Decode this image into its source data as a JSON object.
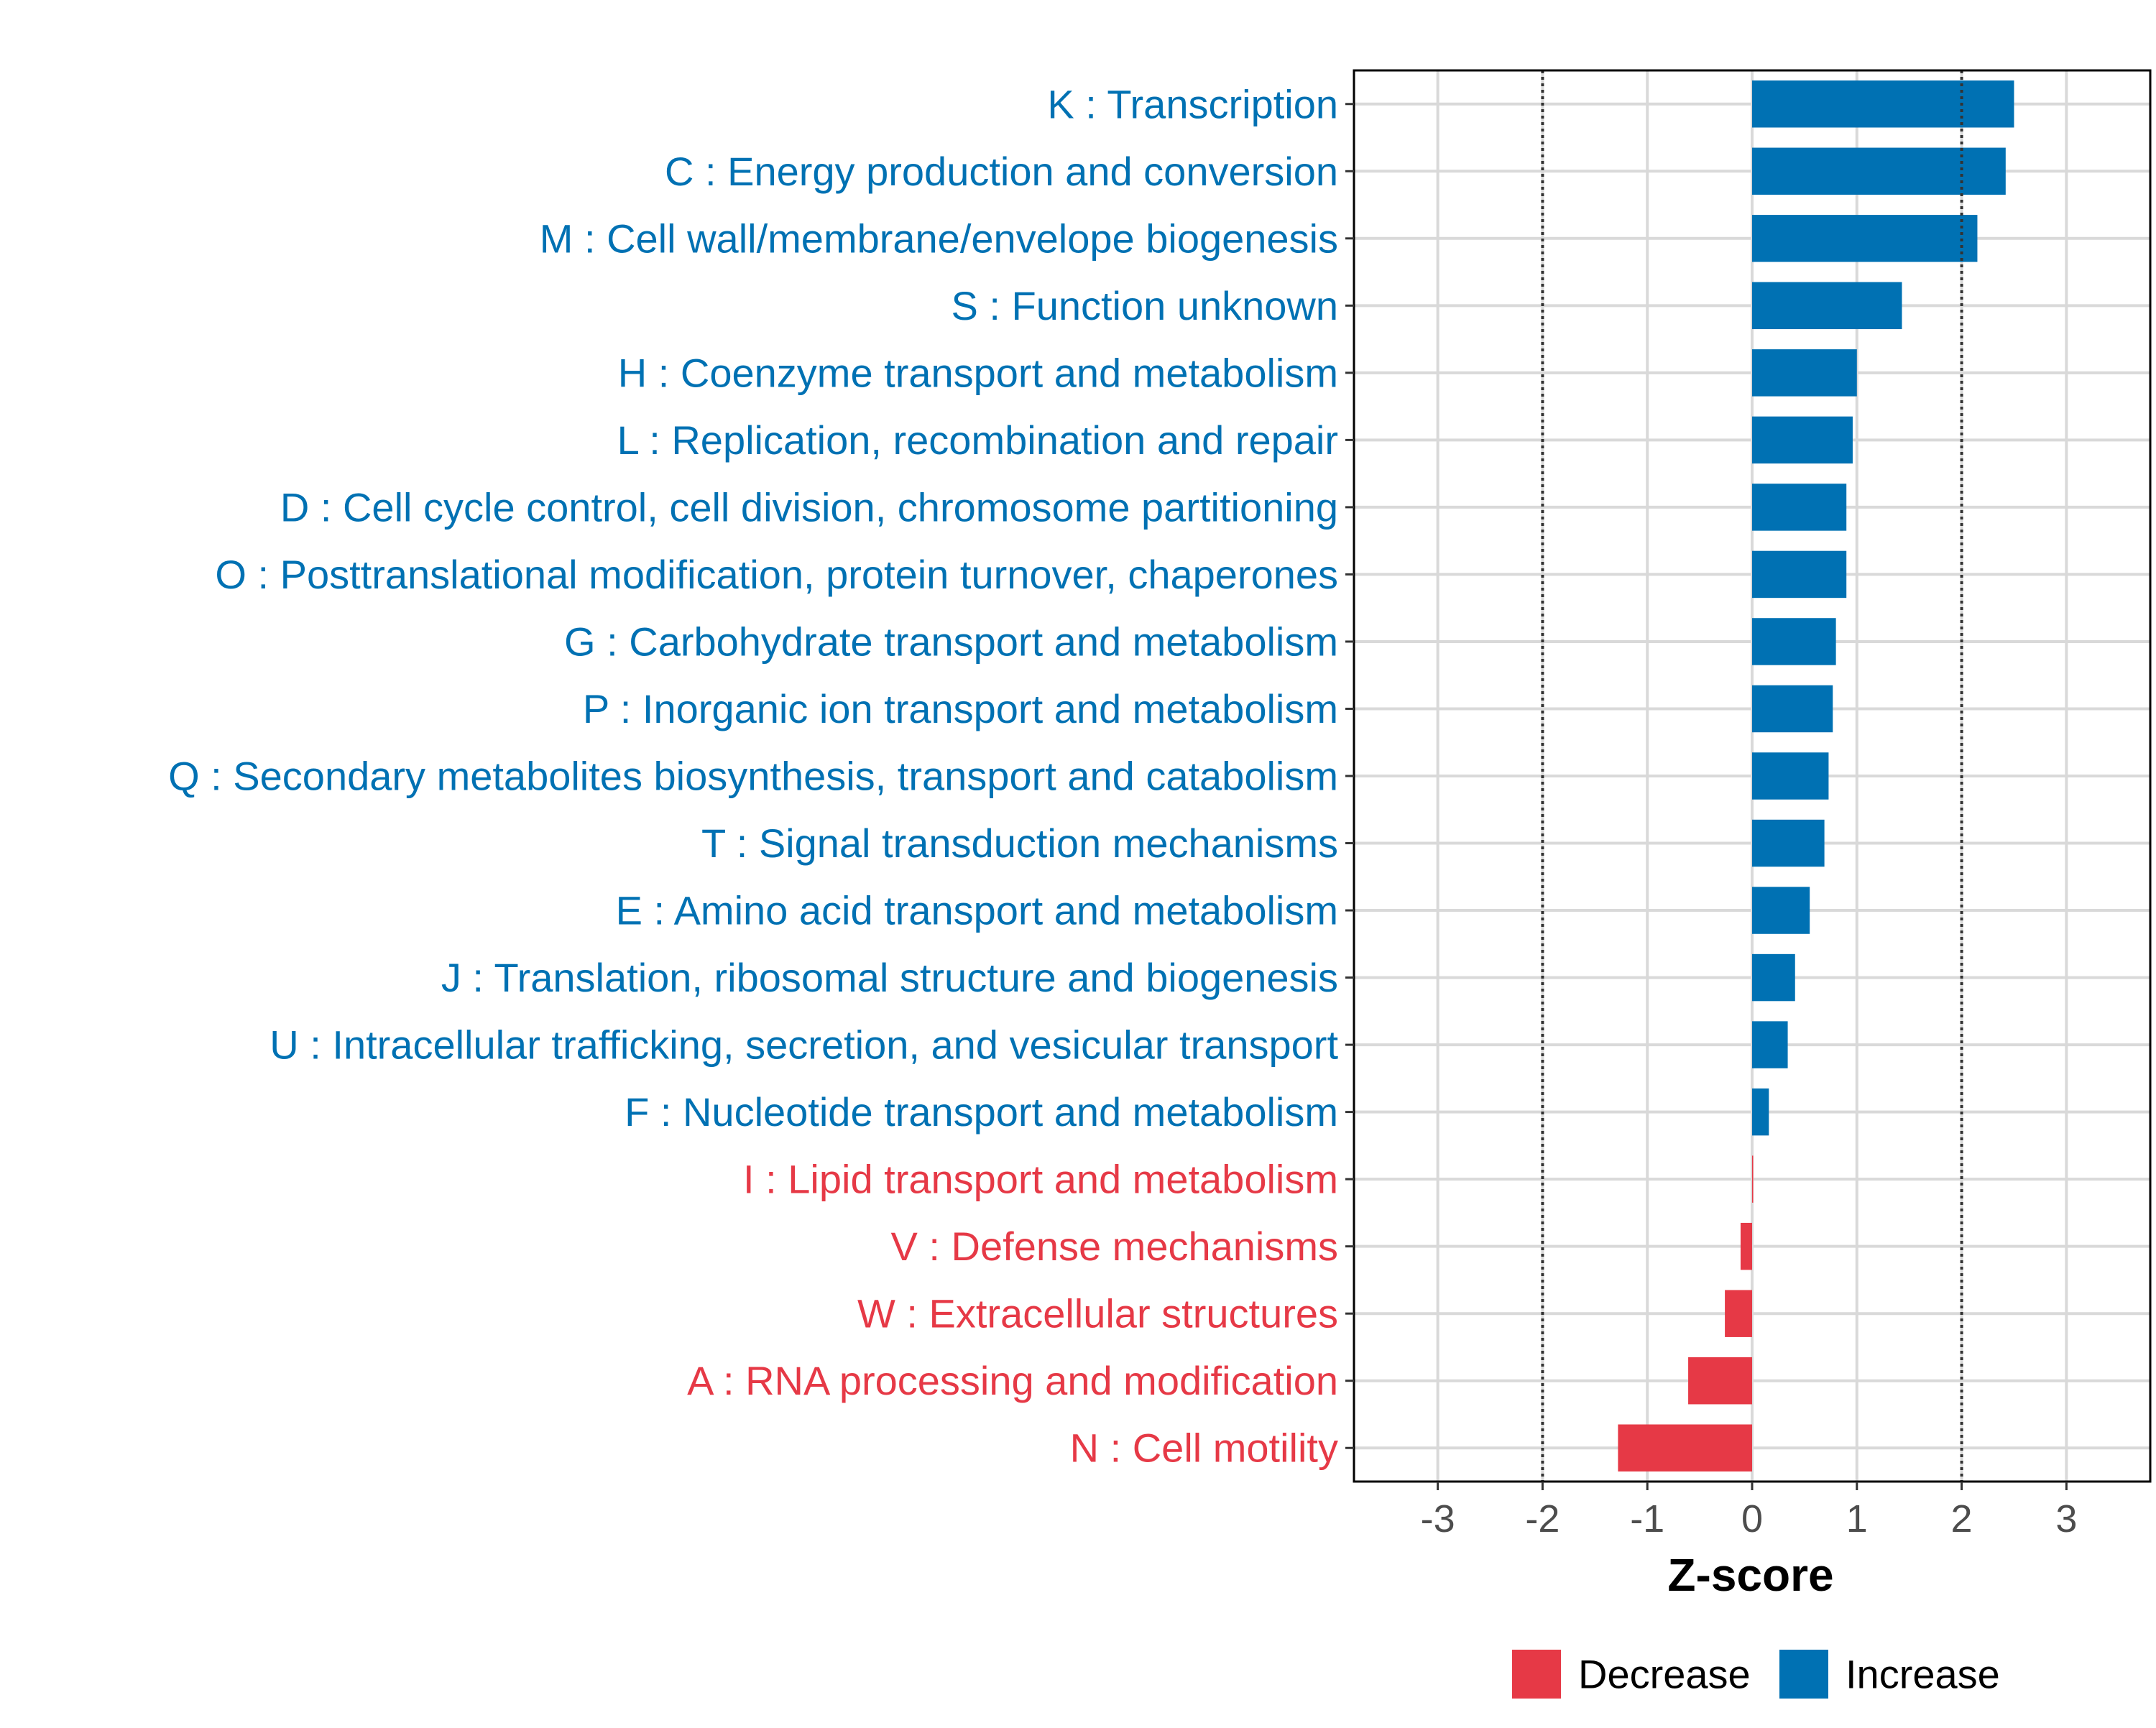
{
  "chart_data": {
    "type": "bar",
    "orientation": "horizontal",
    "xlabel": "Z-score",
    "ylabel": "",
    "xlim": [
      -3.8,
      3.8
    ],
    "xticks": [
      -3,
      -2,
      -1,
      0,
      1,
      2,
      3
    ],
    "xtick_labels": [
      "-3",
      "-2",
      "-1",
      "0",
      "1",
      "2",
      "3"
    ],
    "threshold_lines": [
      -2,
      2
    ],
    "grid": true,
    "colors": {
      "Increase": "#0071b3",
      "Decrease": "#e63946",
      "axis": "#000000",
      "grid": "#d9d9d9",
      "tick_text": "#4d4d4d"
    },
    "legend": {
      "position": "bottom",
      "entries": [
        "Decrease",
        "Increase"
      ]
    },
    "categories": [
      "K : Transcription",
      "C : Energy production and conversion",
      "M : Cell wall/membrane/envelope biogenesis",
      "S : Function unknown",
      "H : Coenzyme transport and metabolism",
      "L : Replication, recombination and repair",
      "D : Cell cycle control, cell division, chromosome partitioning",
      "O : Posttranslational modification, protein turnover, chaperones",
      "G : Carbohydrate transport and metabolism",
      "P : Inorganic ion transport and metabolism",
      "Q : Secondary metabolites biosynthesis, transport and catabolism",
      "T : Signal transduction mechanisms",
      "E : Amino acid transport and metabolism",
      "J : Translation, ribosomal structure and biogenesis",
      "U : Intracellular trafficking, secretion, and vesicular transport",
      "F : Nucleotide transport and metabolism",
      "I : Lipid transport and metabolism",
      "V : Defense mechanisms",
      "W : Extracellular structures",
      "A : RNA processing and modification",
      "N : Cell motility"
    ],
    "values": [
      2.5,
      2.42,
      2.15,
      1.43,
      1.0,
      0.96,
      0.9,
      0.9,
      0.8,
      0.77,
      0.73,
      0.69,
      0.55,
      0.41,
      0.34,
      0.16,
      0.01,
      -0.11,
      -0.26,
      -0.61,
      -1.28
    ],
    "groups": [
      "Increase",
      "Increase",
      "Increase",
      "Increase",
      "Increase",
      "Increase",
      "Increase",
      "Increase",
      "Increase",
      "Increase",
      "Increase",
      "Increase",
      "Increase",
      "Increase",
      "Increase",
      "Increase",
      "Decrease",
      "Decrease",
      "Decrease",
      "Decrease",
      "Decrease"
    ]
  }
}
